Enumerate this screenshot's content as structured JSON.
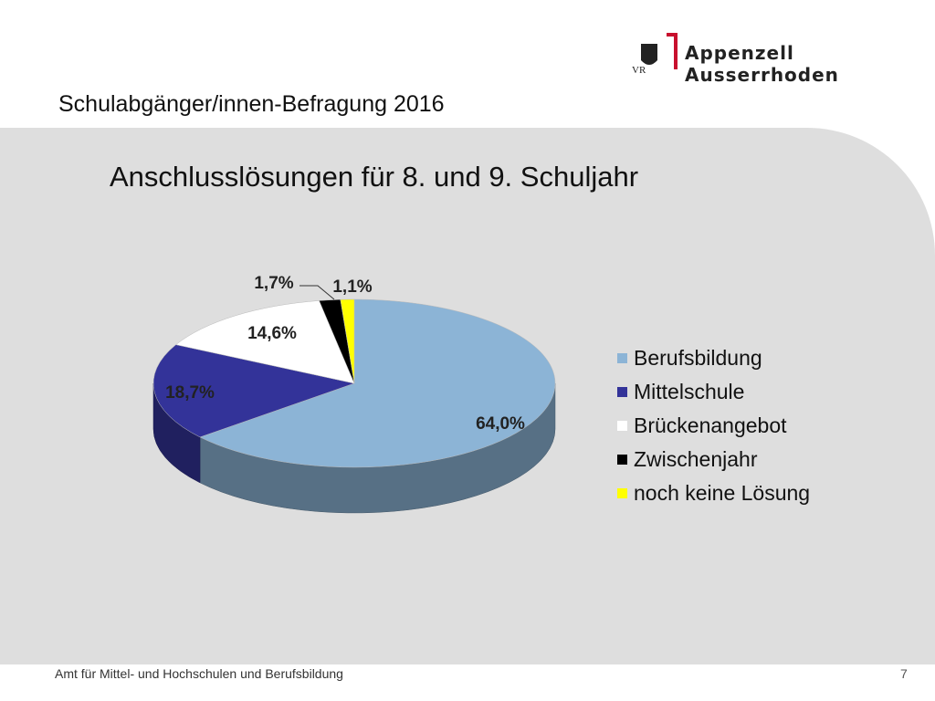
{
  "header": {
    "title": "Schulabgänger/innen-Befragung 2016",
    "logo_text": "Appenzell Ausserrhoden",
    "logo_initials": "VR"
  },
  "footer": {
    "text": "Amt für Mittel- und Hochschulen und Berufsbildung",
    "page": "7"
  },
  "colors": {
    "accent_red": "#c8102e"
  },
  "chart_data": {
    "type": "pie",
    "title": "Anschlusslösungen für 8. und 9. Schuljahr",
    "categories": [
      "Berufsbildung",
      "Mittelschule",
      "Brückenangebot",
      "Zwischenjahr",
      "noch keine Lösung"
    ],
    "values": [
      64.0,
      18.7,
      14.6,
      1.7,
      1.1
    ],
    "labels": [
      "64,0%",
      "18,7%",
      "14,6%",
      "1,7%",
      "1,1%"
    ],
    "colors": [
      "#8cb4d6",
      "#333399",
      "#ffffff",
      "#000000",
      "#ffff00"
    ],
    "legend": "right",
    "style": "3d"
  }
}
